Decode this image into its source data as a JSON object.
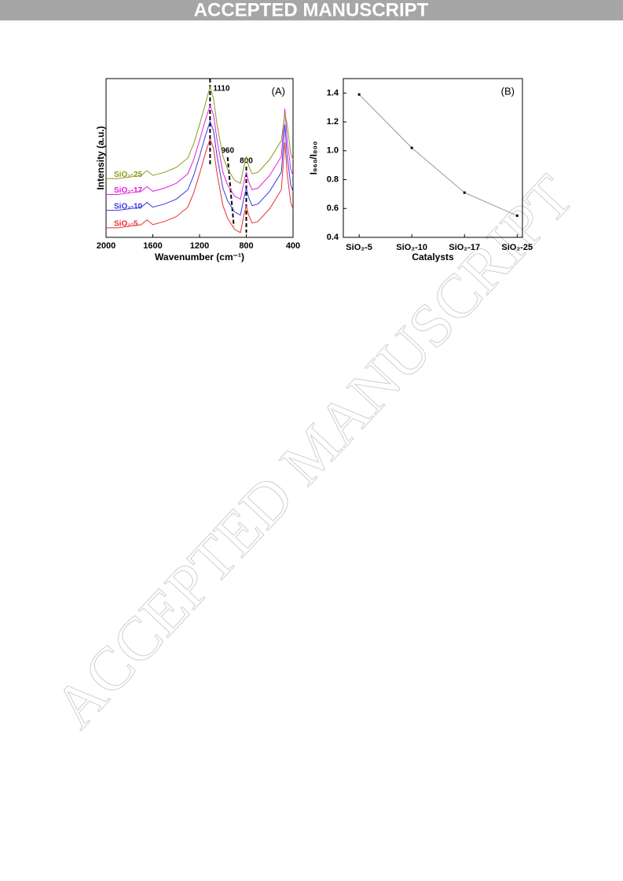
{
  "header": {
    "banner": "ACCEPTED MANUSCRIPT"
  },
  "watermark": "ACCEPTED MANUSCRIPT",
  "chart_data": [
    {
      "type": "line",
      "panel_label": "(A)",
      "xlabel": "Wavenumber (cm⁻¹)",
      "ylabel": "Intensity (a.u.)",
      "x": [
        2000,
        1900,
        1800,
        1700,
        1650,
        1600,
        1500,
        1400,
        1300,
        1250,
        1200,
        1150,
        1110,
        1080,
        1050,
        1000,
        960,
        900,
        850,
        820,
        800,
        780,
        750,
        700,
        600,
        500,
        470,
        450,
        420,
        400
      ],
      "xlim": [
        2000,
        400
      ],
      "xticks": [
        2000,
        1600,
        1200,
        800,
        400
      ],
      "ylim": [
        0,
        100
      ],
      "peak_labels": [
        1110,
        960,
        800
      ],
      "series": [
        {
          "name": "SiO₂-5",
          "color": "#e8312f",
          "values": [
            6,
            6,
            7,
            8,
            11,
            8,
            10,
            13,
            19,
            28,
            40,
            53,
            62,
            56,
            40,
            20,
            12,
            5,
            3,
            14,
            20,
            14,
            9,
            10,
            18,
            30,
            60,
            40,
            22,
            18
          ]
        },
        {
          "name": "SiO₂-10",
          "color": "#3a3ae0",
          "values": [
            17,
            17,
            18,
            19,
            22,
            19,
            21,
            24,
            30,
            39,
            51,
            64,
            73,
            67,
            51,
            31,
            23,
            16,
            14,
            25,
            31,
            25,
            20,
            21,
            29,
            41,
            71,
            51,
            33,
            29
          ]
        },
        {
          "name": "SiO₂-17",
          "color": "#e020e0",
          "values": [
            27,
            27,
            28,
            29,
            32,
            29,
            31,
            34,
            40,
            49,
            61,
            74,
            83,
            77,
            61,
            41,
            33,
            26,
            24,
            35,
            41,
            35,
            30,
            31,
            39,
            51,
            81,
            61,
            43,
            39
          ]
        },
        {
          "name": "SiO₂-25",
          "color": "#8c9a1c",
          "values": [
            37,
            37,
            38,
            39,
            42,
            39,
            41,
            44,
            50,
            59,
            71,
            84,
            95,
            87,
            71,
            51,
            43,
            36,
            34,
            45,
            51,
            45,
            40,
            41,
            49,
            61,
            78,
            71,
            53,
            49
          ]
        }
      ]
    },
    {
      "type": "line",
      "panel_label": "(B)",
      "xlabel": "Catalysts",
      "ylabel": "I₉₆₀/I₈₀₀",
      "categories": [
        "SiO₂-5",
        "SiO₂-10",
        "SiO₂-17",
        "SiO₂-25"
      ],
      "ylim": [
        0.4,
        1.5
      ],
      "yticks": [
        0.4,
        0.6,
        0.8,
        {
          "value": 1,
          "label": "1.0"
        },
        1.2,
        1.4
      ],
      "series": [
        {
          "name": "I₉₆₀/I₈₀₀",
          "color": "#999999",
          "values": [
            1.39,
            1.02,
            0.71,
            0.55
          ]
        }
      ]
    }
  ]
}
